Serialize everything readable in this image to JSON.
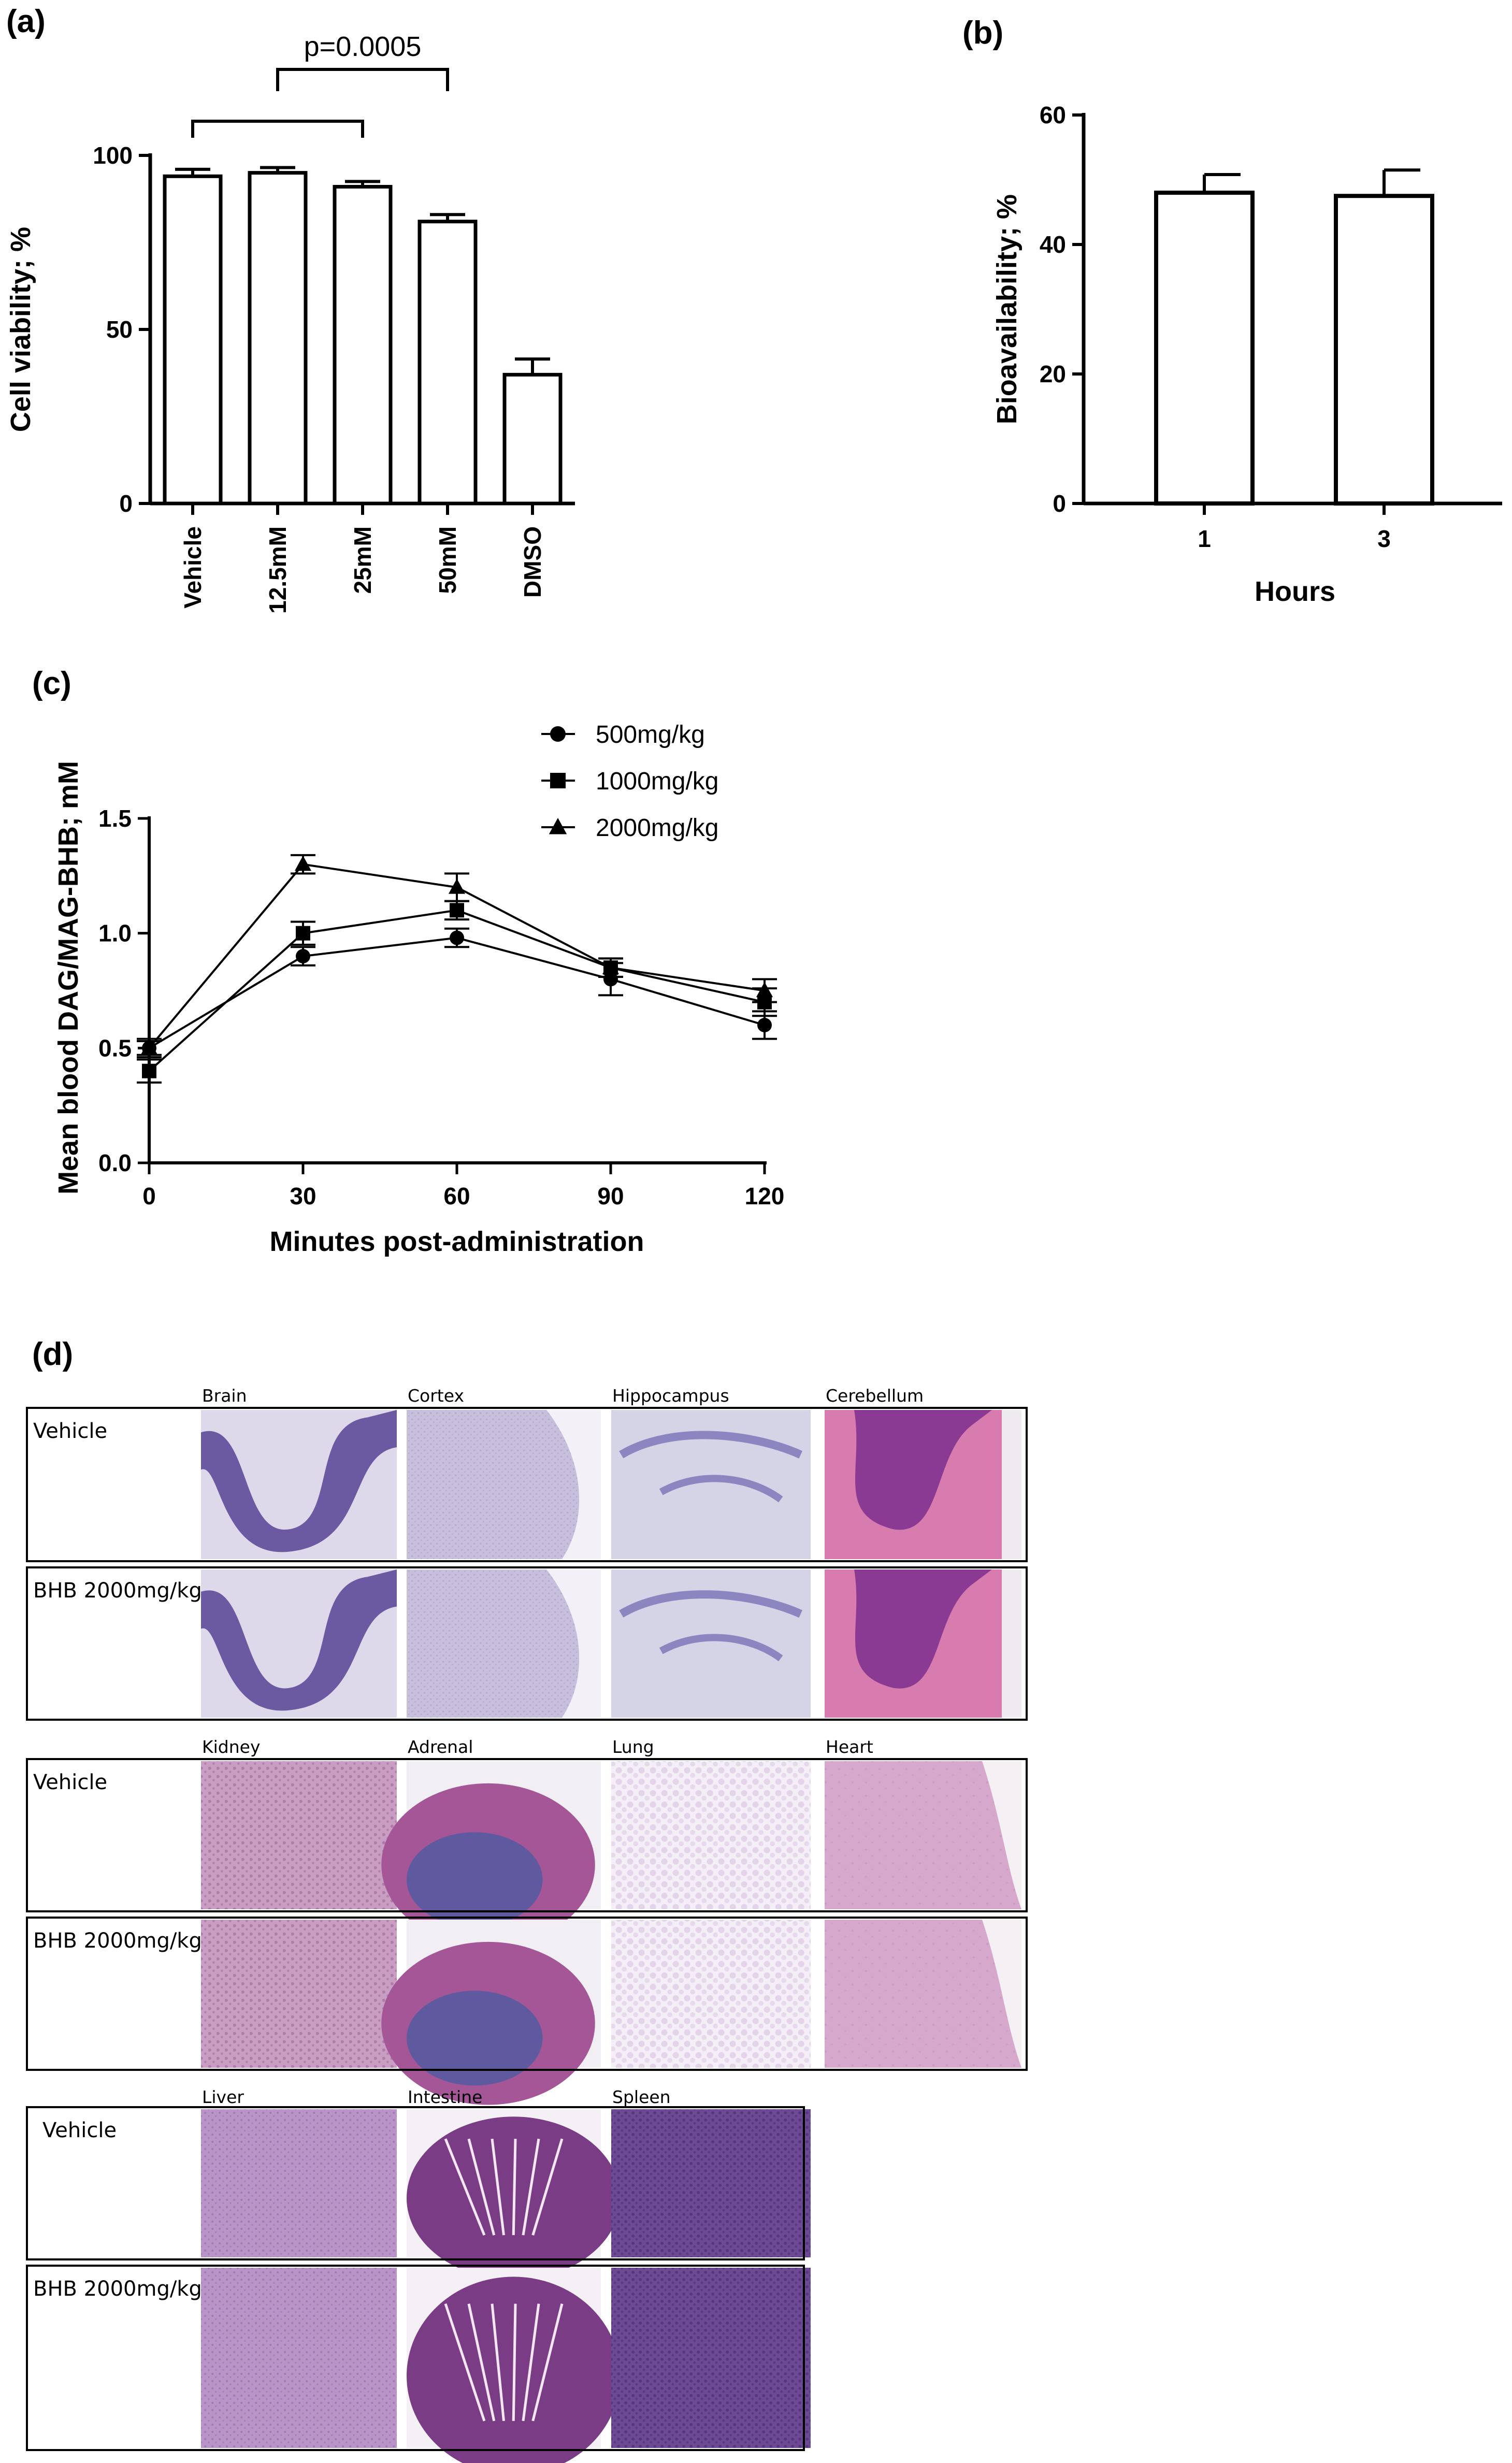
{
  "panel_labels": [
    "(a)",
    "(b)",
    "(c)",
    "(d)"
  ],
  "chart_data": [
    {
      "type": "bar",
      "panel": "(a)",
      "ylabel": "Cell viability; %",
      "xlabel": "",
      "categories": [
        "Vehicle",
        "12.5mM",
        "25mM",
        "50mM",
        "DMSO"
      ],
      "values": [
        94,
        95,
        91,
        81,
        37
      ],
      "errors": [
        2,
        1.5,
        1.5,
        2,
        4.5
      ],
      "ylim": [
        0,
        100
      ],
      "yticks": [
        0,
        50,
        100
      ],
      "annotations": [
        {
          "text": "p=0.0005",
          "from": "12.5mM",
          "to": "50mM"
        },
        {
          "text": "",
          "from": "Vehicle",
          "to": "25mM"
        }
      ]
    },
    {
      "type": "bar",
      "panel": "(b)",
      "ylabel": "Bioavailability; %",
      "xlabel": "Hours",
      "categories": [
        "1",
        "3"
      ],
      "values": [
        48,
        47.5
      ],
      "errors": [
        2.8,
        4
      ],
      "ylim": [
        0,
        60
      ],
      "yticks": [
        0,
        20,
        40,
        60
      ]
    },
    {
      "type": "line",
      "panel": "(c)",
      "ylabel": "Mean blood DAG/MAG-BHB; mM",
      "xlabel": "Minutes post-administration",
      "x": [
        0,
        30,
        60,
        90,
        120
      ],
      "xticks": [
        0,
        30,
        60,
        90,
        120
      ],
      "ylim": [
        0,
        1.5
      ],
      "yticks": [
        0.0,
        0.5,
        1.0,
        1.5
      ],
      "legend_position": "top-right",
      "series": [
        {
          "name": "500mg/kg",
          "marker": "circle",
          "values": [
            0.5,
            0.9,
            0.98,
            0.8,
            0.6
          ],
          "errors": [
            0.03,
            0.04,
            0.04,
            0.07,
            0.06
          ]
        },
        {
          "name": "1000mg/kg",
          "marker": "square",
          "values": [
            0.4,
            1.0,
            1.1,
            0.85,
            0.7
          ],
          "errors": [
            0.05,
            0.05,
            0.04,
            0.04,
            0.06
          ]
        },
        {
          "name": "2000mg/kg",
          "marker": "triangle",
          "values": [
            0.5,
            1.3,
            1.2,
            0.85,
            0.75
          ],
          "errors": [
            0.04,
            0.04,
            0.06,
            0.04,
            0.05
          ]
        }
      ]
    }
  ],
  "histology": {
    "groups": [
      {
        "tissues": [
          "Brain",
          "Cortex",
          "Hippocampus",
          "Cerebellum"
        ],
        "rows": [
          "Vehicle",
          "BHB 2000mg/kg"
        ]
      },
      {
        "tissues": [
          "Kidney",
          "Adrenal",
          "Lung",
          "Heart"
        ],
        "rows": [
          "Vehicle",
          "BHB 2000mg/kg"
        ]
      },
      {
        "tissues": [
          "Liver",
          "Intestine",
          "Spleen"
        ],
        "rows": [
          "Vehicle",
          "BHB 2000mg/kg"
        ]
      }
    ],
    "stain_colors": {
      "brain_bg": "#ddd8ea",
      "brain_dense": "#5e4d9a",
      "cortex": "#c7bfdc",
      "hippo": "#d5d4e6",
      "cerebellum_bg": "#d87cb0",
      "cerebellum_dense": "#7c2f8e",
      "kidney": "#c89ec2",
      "adrenal": "#a55696",
      "lung": "#d7bfe0",
      "heart": "#d6a8cb",
      "liver": "#b994c6",
      "intestine": "#7a3d85",
      "spleen": "#6e4a95"
    }
  }
}
